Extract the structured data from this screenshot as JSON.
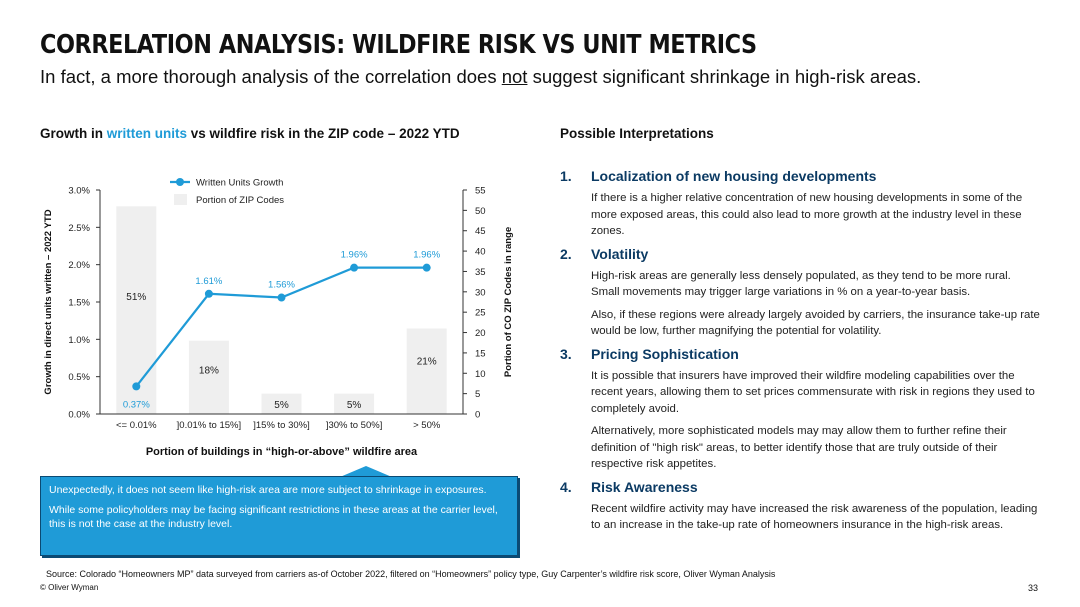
{
  "title": "CORRELATION ANALYSIS: WILDFIRE RISK VS UNIT METRICS",
  "subtitle": {
    "before": "In fact, a more thorough analysis of the correlation does ",
    "emphasis": "not",
    "after": " suggest significant shrinkage in high-risk areas."
  },
  "chart_heading": {
    "before": "Growth in ",
    "accent": "written units",
    "after": " vs wildfire risk in the ZIP code – 2022 YTD"
  },
  "colors": {
    "accent": "#1f9bd7",
    "dark_blue": "#0b3a63",
    "bar": "#efefef"
  },
  "chart_data": {
    "type": "bar",
    "categories": [
      "<= 0.01%",
      "]0.01% to 15%]",
      "]15% to 30%]",
      "]30% to 50%]",
      "> 50%"
    ],
    "series": [
      {
        "name": "Portion of ZIP Codes",
        "type": "bar",
        "axis": "right",
        "values": [
          51,
          18,
          5,
          5,
          21
        ],
        "labels": [
          "51%",
          "18%",
          "5%",
          "5%",
          "21%"
        ]
      },
      {
        "name": "Written Units Growth",
        "type": "line",
        "axis": "left",
        "values": [
          0.37,
          1.61,
          1.56,
          1.96,
          1.96
        ],
        "labels": [
          "0.37%",
          "1.61%",
          "1.56%",
          "1.96%",
          "1.96%"
        ]
      }
    ],
    "xlabel": "Portion of buildings in “high-or-above” wildfire area",
    "ylabel": "Growth in direct units written – 2022 YTD",
    "y2label": "Portion of CO ZIP Codes in range",
    "ylim": [
      0,
      3.0
    ],
    "y2lim": [
      0,
      55
    ],
    "yticks": [
      "0.0%",
      "0.5%",
      "1.0%",
      "1.5%",
      "2.0%",
      "2.5%",
      "3.0%"
    ],
    "y2ticks": [
      "0",
      "5",
      "10",
      "15",
      "20",
      "25",
      "30",
      "35",
      "40",
      "45",
      "50",
      "55"
    ],
    "legend": "top-left"
  },
  "callout": {
    "p1": "Unexpectedly, it does not seem like high-risk area are more subject to shrinkage in exposures.",
    "p2": "While some policyholders may be facing significant restrictions in these areas at the carrier level, this is not the case at the industry level."
  },
  "interpretations": {
    "title": "Possible Interpretations",
    "items": [
      {
        "num": "1.",
        "heading": "Localization of new housing developments",
        "paragraphs": [
          "If there is a higher relative concentration of new housing developments in some of the more exposed areas, this could also lead to more growth at the industry level in these zones."
        ]
      },
      {
        "num": "2.",
        "heading": "Volatility",
        "paragraphs": [
          "High-risk areas are generally less densely populated, as they tend to be more rural. Small movements may trigger large variations in % on a year-to-year basis.",
          "Also, if these regions were already largely avoided by carriers, the insurance take-up rate would be low, further magnifying the potential for volatility."
        ]
      },
      {
        "num": "3.",
        "heading": "Pricing Sophistication",
        "paragraphs": [
          "It is possible that insurers have improved their wildfire modeling capabilities over the recent years, allowing them to set prices commensurate with risk in regions they used to completely avoid.",
          "Alternatively, more sophisticated models may may allow them to further refine their definition of \"high risk\" areas, to better identify those that are truly outside of their respective risk appetites."
        ]
      },
      {
        "num": "4.",
        "heading": "Risk Awareness",
        "paragraphs": [
          "Recent wildfire activity may have increased the risk awareness of the population, leading to an increase in the take-up rate of homeowners insurance in the high-risk areas."
        ]
      }
    ]
  },
  "source": "Source: Colorado “Homeowners MP” data surveyed from carriers as-of October 2022, filtered on “Homeowners” policy type, Guy Carpenter’s wildfire risk score, Oliver Wyman Analysis",
  "copyright": "© Oliver Wyman",
  "page_number": "33"
}
